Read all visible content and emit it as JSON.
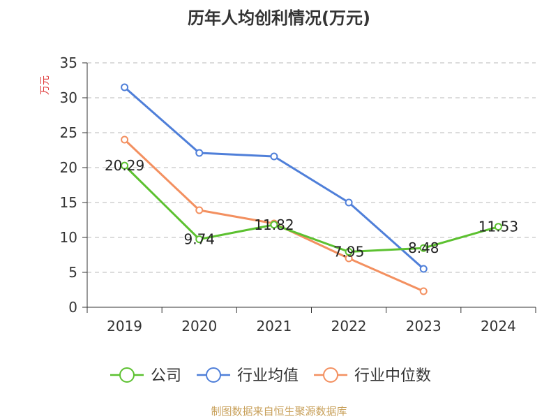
{
  "chart_data": {
    "type": "line",
    "title": "历年人均创利情况(万元)",
    "ylabel": "万元",
    "xlabel": "",
    "categories": [
      "2019",
      "2020",
      "2021",
      "2022",
      "2023",
      "2024"
    ],
    "ylim": [
      0,
      35
    ],
    "yticks": [
      0,
      5,
      10,
      15,
      20,
      25,
      30,
      35
    ],
    "grid": true,
    "legend": "bottom",
    "series": [
      {
        "name": "公司",
        "color": "#5cc130",
        "values": [
          20.29,
          9.74,
          11.82,
          7.95,
          8.48,
          11.53
        ],
        "labels": [
          "20.29",
          "9.74",
          "11.82",
          "7.95",
          "8.48",
          "11.53"
        ]
      },
      {
        "name": "行业均值",
        "color": "#4f7fd9",
        "values": [
          31.5,
          22.1,
          21.6,
          15.0,
          5.5,
          null
        ]
      },
      {
        "name": "行业中位数",
        "color": "#f39060",
        "values": [
          24.0,
          13.9,
          12.0,
          7.0,
          2.3,
          null
        ]
      }
    ],
    "title_color": "#333333",
    "ylabel_color": "#e04040"
  },
  "source_text": "制图数据来自恒生聚源数据库",
  "source_color": "#c8a05a"
}
